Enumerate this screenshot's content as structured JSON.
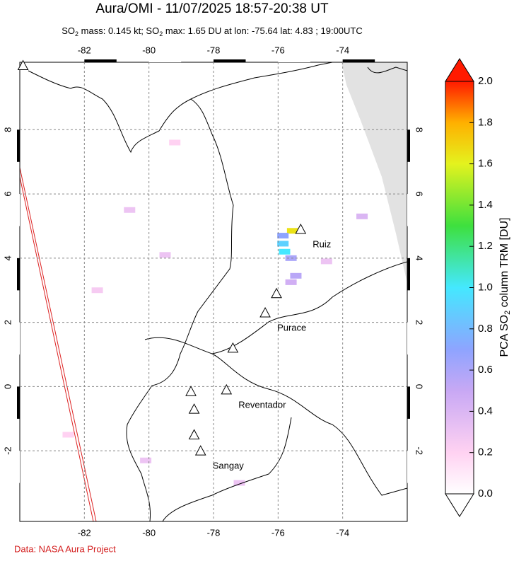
{
  "header": {
    "title": "Aura/OMI - 11/07/2025 18:57-20:38 UT",
    "subtitle": [
      "SO",
      "2",
      " mass: 0.145 kt; SO",
      "2",
      " max: 1.65 DU at lon: -75.64 lat: 4.83 ; 19:00UTC"
    ]
  },
  "map": {
    "lonlim": [
      -84,
      -72
    ],
    "latlim": [
      -4.2,
      10.1
    ],
    "lonticks": [
      -82,
      -80,
      -78,
      -76,
      -74
    ],
    "latticks": [
      -2,
      0,
      2,
      4,
      6,
      8
    ],
    "grid": true,
    "volcanoes": [
      {
        "name": "Ruiz",
        "lon": -75.3,
        "lat": 4.9
      },
      {
        "name": "Purace",
        "lon": -76.4,
        "lat": 2.3
      },
      {
        "name": "Reventador",
        "lon": -77.6,
        "lat": -0.1
      },
      {
        "name": "Sangay",
        "lon": -78.4,
        "lat": -2.0
      },
      {
        "lon": -76.05,
        "lat": 2.9
      },
      {
        "lon": -77.4,
        "lat": 1.2
      },
      {
        "lon": -78.7,
        "lat": -0.15
      },
      {
        "lon": -78.6,
        "lat": -0.7
      },
      {
        "lon": -78.6,
        "lat": -1.5
      },
      {
        "lon": -83.9,
        "lat": 10.0
      }
    ],
    "pixels": [
      {
        "lon": -75.55,
        "lat": 4.85,
        "value": 1.65
      },
      {
        "lon": -75.85,
        "lat": 4.7,
        "value": 0.7
      },
      {
        "lon": -75.85,
        "lat": 4.45,
        "value": 0.9
      },
      {
        "lon": -75.8,
        "lat": 4.2,
        "value": 1.0
      },
      {
        "lon": -75.6,
        "lat": 4.0,
        "value": 0.6
      },
      {
        "lon": -75.45,
        "lat": 3.45,
        "value": 0.55
      },
      {
        "lon": -75.6,
        "lat": 3.25,
        "value": 0.45
      },
      {
        "lon": -80.6,
        "lat": 5.5,
        "value": 0.3
      },
      {
        "lon": -81.6,
        "lat": 3.0,
        "value": 0.25
      },
      {
        "lon": -80.1,
        "lat": -2.3,
        "value": 0.3
      },
      {
        "lon": -77.2,
        "lat": -3.0,
        "value": 0.3
      },
      {
        "lon": -79.2,
        "lat": 7.6,
        "value": 0.2
      },
      {
        "lon": -79.5,
        "lat": 4.1,
        "value": 0.3
      },
      {
        "lon": -74.5,
        "lat": 3.9,
        "value": 0.3
      },
      {
        "lon": -73.4,
        "lat": 5.3,
        "value": 0.4
      },
      {
        "lon": -82.5,
        "lat": -1.5,
        "value": 0.2
      }
    ]
  },
  "colorbar": {
    "label": [
      "PCA SO",
      "2",
      " column TRM [DU]"
    ],
    "lim": [
      0,
      2.0
    ],
    "ticks": [
      {
        "value": 0,
        "label": "0.0"
      },
      0.2,
      0.4,
      0.6,
      0.8,
      {
        "value": 1,
        "label": "1.0"
      },
      1.2,
      1.4,
      1.6,
      1.8,
      {
        "value": 2,
        "label": "2.0"
      }
    ],
    "colormap": [
      {
        "value": 0,
        "color": "#ffffff"
      },
      {
        "value": 0.2,
        "color": "#ffd2f2"
      },
      {
        "value": 0.5,
        "color": "#c8a8f4"
      },
      {
        "value": 0.7,
        "color": "#8ea4ff"
      },
      {
        "value": 1.0,
        "color": "#44e8ff"
      },
      {
        "value": 1.3,
        "color": "#3ee03e"
      },
      {
        "value": 1.6,
        "color": "#e4f21e"
      },
      {
        "value": 1.8,
        "color": "#ffb000"
      },
      {
        "value": 2.0,
        "color": "#ff1a00"
      }
    ]
  },
  "footer": {
    "credit": "Data: NASA Aura Project"
  }
}
